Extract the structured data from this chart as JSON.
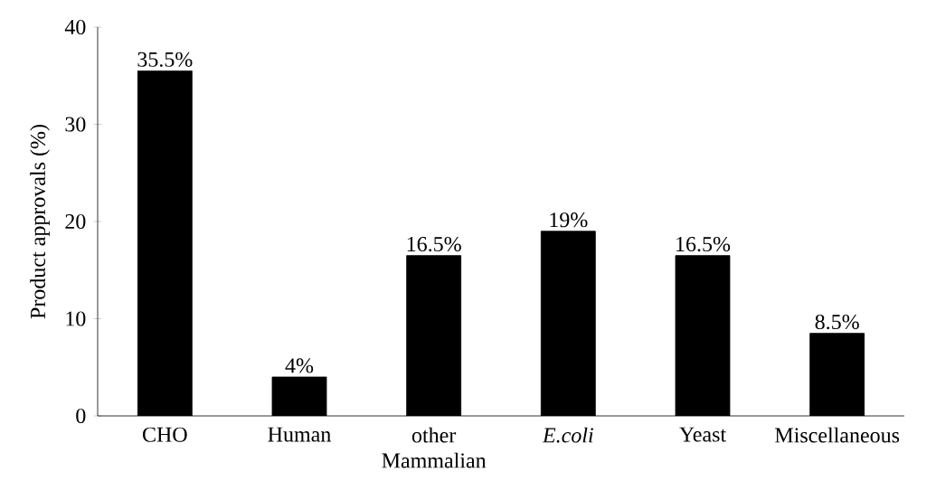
{
  "chart_data": {
    "type": "bar",
    "categories": [
      "CHO",
      "Human",
      "other Mammalian",
      "*E.coli*",
      "Yeast",
      "Miscellaneous"
    ],
    "values": [
      35.5,
      4,
      16.5,
      19,
      16.5,
      8.5
    ],
    "value_labels": [
      "35.5%",
      "4%",
      "16.5%",
      "19%",
      "16.5%",
      "8.5%"
    ],
    "color": "#000000",
    "ylabel": "Product approvals (%)",
    "ylim": [
      0,
      40
    ],
    "yticks": [
      0,
      10,
      20,
      30,
      40
    ]
  }
}
